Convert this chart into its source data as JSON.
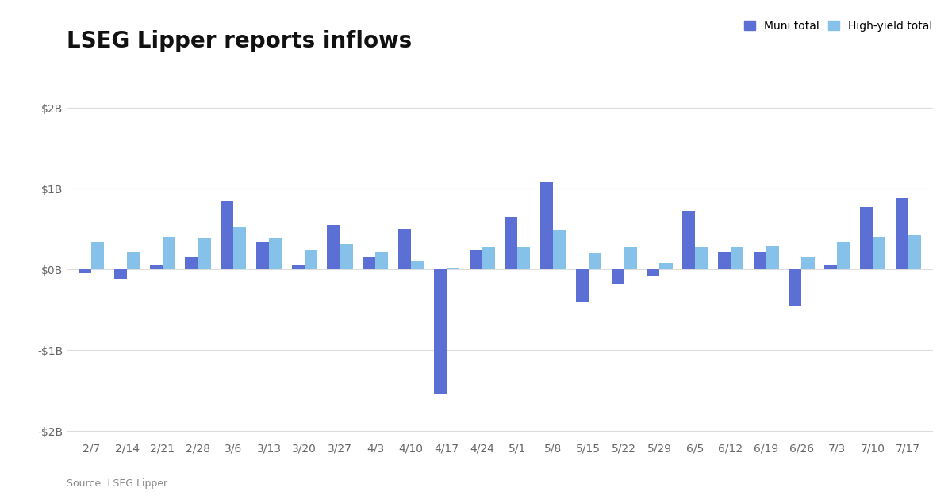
{
  "title": "LSEG Lipper reports inflows",
  "source": "Source: LSEG Lipper",
  "categories": [
    "2/7",
    "2/14",
    "2/21",
    "2/28",
    "3/6",
    "3/13",
    "3/20",
    "3/27",
    "4/3",
    "4/10",
    "4/17",
    "4/24",
    "5/1",
    "5/8",
    "5/15",
    "5/22",
    "5/29",
    "6/5",
    "6/12",
    "6/19",
    "6/26",
    "7/3",
    "7/10",
    "7/17"
  ],
  "muni_total": [
    -0.05,
    -0.12,
    0.05,
    0.15,
    0.85,
    0.35,
    0.05,
    0.55,
    0.15,
    0.5,
    -1.55,
    0.25,
    0.65,
    1.08,
    -0.4,
    -0.18,
    -0.08,
    0.72,
    0.22,
    0.22,
    -0.45,
    0.05,
    0.78,
    0.88
  ],
  "hy_total": [
    0.35,
    0.22,
    0.4,
    0.38,
    0.52,
    0.38,
    0.25,
    0.32,
    0.22,
    0.1,
    0.02,
    0.28,
    0.28,
    0.48,
    0.2,
    0.28,
    0.08,
    0.28,
    0.28,
    0.3,
    0.15,
    0.35,
    0.4,
    0.42
  ],
  "muni_color": "#5B6FD4",
  "hy_color": "#85C1E9",
  "ylim": [
    -2.1,
    2.1
  ],
  "yticks": [
    -2,
    -1,
    0,
    1,
    2
  ],
  "ytick_labels": [
    "-$2B",
    "-$1B",
    "$0B",
    "$1B",
    "$2B"
  ],
  "bar_width": 0.36,
  "background_color": "#ffffff",
  "grid_color": "#dddddd",
  "title_fontsize": 20,
  "tick_fontsize": 10,
  "legend_fontsize": 10,
  "source_fontsize": 9
}
